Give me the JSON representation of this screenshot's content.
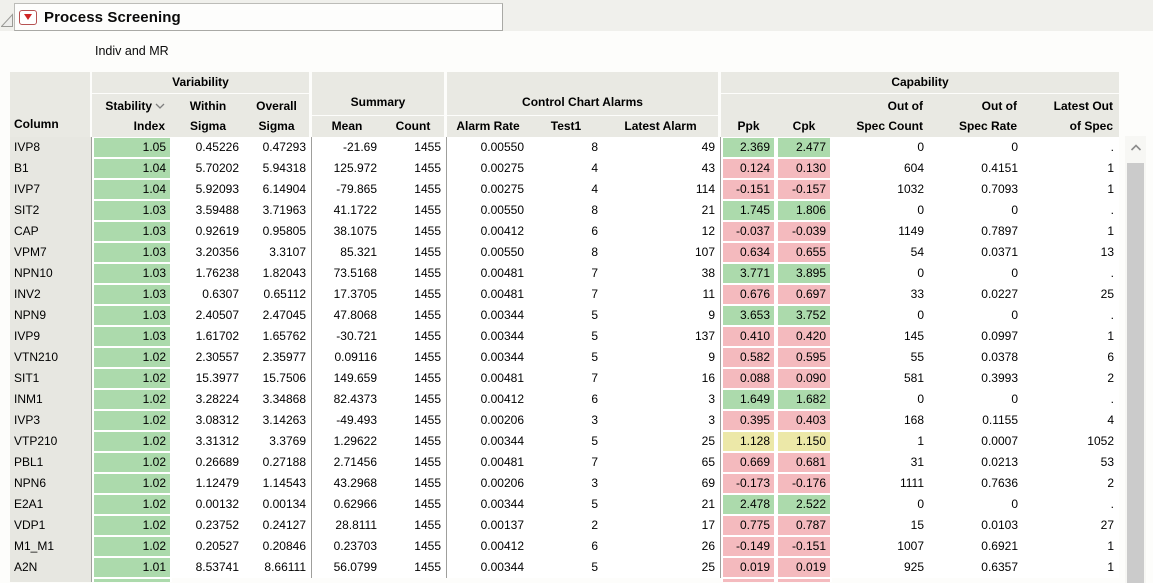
{
  "app": {
    "title": "Process Screening",
    "subtitle": "Indiv and MR"
  },
  "table": {
    "header": {
      "column": "Column",
      "groups": {
        "variability": "Variability",
        "summary": "Summary",
        "alarms": "Control Chart Alarms",
        "capability": "Capability"
      },
      "stability_line1": "Stability",
      "stability_line2": "Index",
      "within_line1": "Within",
      "within_line2": "Sigma",
      "overall_line1": "Overall",
      "overall_line2": "Sigma",
      "mean": "Mean",
      "count": "Count",
      "alarm_rate": "Alarm Rate",
      "test1": "Test1",
      "latest_alarm": "Latest Alarm",
      "ppk": "Ppk",
      "cpk": "Cpk",
      "oos_count_line1": "Out of",
      "oos_count_line2": "Spec Count",
      "oos_rate_line1": "Out of",
      "oos_rate_line2": "Spec Rate",
      "latest_oos_line1": "Latest Out",
      "latest_oos_line2": "of Spec"
    },
    "fields": [
      "column",
      "stability_index",
      "within_sigma",
      "overall_sigma",
      "mean",
      "count",
      "alarm_rate",
      "test1",
      "latest_alarm",
      "ppk",
      "cpk",
      "capability_color",
      "out_of_spec_count",
      "out_of_spec_rate",
      "latest_out_of_spec"
    ],
    "rows": [
      [
        "IVP8",
        "1.05",
        "0.45226",
        "0.47293",
        "-21.69",
        "1455",
        "0.00550",
        "8",
        "49",
        "2.369",
        "2.477",
        "green",
        "0",
        "0",
        "."
      ],
      [
        "B1",
        "1.04",
        "5.70202",
        "5.94318",
        "125.972",
        "1455",
        "0.00275",
        "4",
        "43",
        "0.124",
        "0.130",
        "pink",
        "604",
        "0.4151",
        "1"
      ],
      [
        "IVP7",
        "1.04",
        "5.92093",
        "6.14904",
        "-79.865",
        "1455",
        "0.00275",
        "4",
        "114",
        "-0.151",
        "-0.157",
        "pink",
        "1032",
        "0.7093",
        "1"
      ],
      [
        "SIT2",
        "1.03",
        "3.59488",
        "3.71963",
        "41.1722",
        "1455",
        "0.00550",
        "8",
        "21",
        "1.745",
        "1.806",
        "green",
        "0",
        "0",
        "."
      ],
      [
        "CAP",
        "1.03",
        "0.92619",
        "0.95805",
        "38.1075",
        "1455",
        "0.00412",
        "6",
        "12",
        "-0.037",
        "-0.039",
        "pink",
        "1149",
        "0.7897",
        "1"
      ],
      [
        "VPM7",
        "1.03",
        "3.20356",
        "3.3107",
        "85.321",
        "1455",
        "0.00550",
        "8",
        "107",
        "0.634",
        "0.655",
        "pink",
        "54",
        "0.0371",
        "13"
      ],
      [
        "NPN10",
        "1.03",
        "1.76238",
        "1.82043",
        "73.5168",
        "1455",
        "0.00481",
        "7",
        "38",
        "3.771",
        "3.895",
        "green",
        "0",
        "0",
        "."
      ],
      [
        "INV2",
        "1.03",
        "0.6307",
        "0.65112",
        "17.3705",
        "1455",
        "0.00481",
        "7",
        "11",
        "0.676",
        "0.697",
        "pink",
        "33",
        "0.0227",
        "25"
      ],
      [
        "NPN9",
        "1.03",
        "2.40507",
        "2.47045",
        "47.8068",
        "1455",
        "0.00344",
        "5",
        "9",
        "3.653",
        "3.752",
        "green",
        "0",
        "0",
        "."
      ],
      [
        "IVP9",
        "1.03",
        "1.61702",
        "1.65762",
        "-30.721",
        "1455",
        "0.00344",
        "5",
        "137",
        "0.410",
        "0.420",
        "pink",
        "145",
        "0.0997",
        "1"
      ],
      [
        "VTN210",
        "1.02",
        "2.30557",
        "2.35977",
        "0.09116",
        "1455",
        "0.00344",
        "5",
        "9",
        "0.582",
        "0.595",
        "pink",
        "55",
        "0.0378",
        "6"
      ],
      [
        "SIT1",
        "1.02",
        "15.3977",
        "15.7506",
        "149.659",
        "1455",
        "0.00481",
        "7",
        "16",
        "0.088",
        "0.090",
        "pink",
        "581",
        "0.3993",
        "2"
      ],
      [
        "INM1",
        "1.02",
        "3.28224",
        "3.34868",
        "82.4373",
        "1455",
        "0.00412",
        "6",
        "3",
        "1.649",
        "1.682",
        "green",
        "0",
        "0",
        "."
      ],
      [
        "IVP3",
        "1.02",
        "3.08312",
        "3.14263",
        "-49.493",
        "1455",
        "0.00206",
        "3",
        "3",
        "0.395",
        "0.403",
        "pink",
        "168",
        "0.1155",
        "4"
      ],
      [
        "VTP210",
        "1.02",
        "3.31312",
        "3.3769",
        "1.29622",
        "1455",
        "0.00344",
        "5",
        "25",
        "1.128",
        "1.150",
        "yellow",
        "1",
        "0.0007",
        "1052"
      ],
      [
        "PBL1",
        "1.02",
        "0.26689",
        "0.27188",
        "2.71456",
        "1455",
        "0.00481",
        "7",
        "65",
        "0.669",
        "0.681",
        "pink",
        "31",
        "0.0213",
        "53"
      ],
      [
        "NPN6",
        "1.02",
        "1.12479",
        "1.14543",
        "43.2968",
        "1455",
        "0.00206",
        "3",
        "69",
        "-0.173",
        "-0.176",
        "pink",
        "1111",
        "0.7636",
        "2"
      ],
      [
        "E2A1",
        "1.02",
        "0.00132",
        "0.00134",
        "0.62966",
        "1455",
        "0.00344",
        "5",
        "21",
        "2.478",
        "2.522",
        "green",
        "0",
        "0",
        "."
      ],
      [
        "VDP1",
        "1.02",
        "0.23752",
        "0.24127",
        "28.8111",
        "1455",
        "0.00137",
        "2",
        "17",
        "0.775",
        "0.787",
        "pink",
        "15",
        "0.0103",
        "27"
      ],
      [
        "M1_M1",
        "1.02",
        "0.20527",
        "0.20846",
        "0.23703",
        "1455",
        "0.00412",
        "6",
        "26",
        "-0.149",
        "-0.151",
        "pink",
        "1007",
        "0.6921",
        "1"
      ],
      [
        "A2N",
        "1.01",
        "8.53741",
        "8.66111",
        "56.0799",
        "1455",
        "0.00344",
        "5",
        "25",
        "0.019",
        "0.019",
        "pink",
        "925",
        "0.6357",
        "1"
      ]
    ],
    "partial_row": {
      "stability_color": "green",
      "ppk_color": "pink",
      "cpk_color": "pink"
    }
  },
  "colors": {
    "green": "#acdaac",
    "pink": "#f4babe",
    "yellow": "#ece8a8"
  },
  "icons": {
    "outline_collapse": "triangle-lower-right-outline",
    "disclosure": "red-triangle-down",
    "sort": "chevron-down",
    "scroll_up": "chevron-up"
  }
}
